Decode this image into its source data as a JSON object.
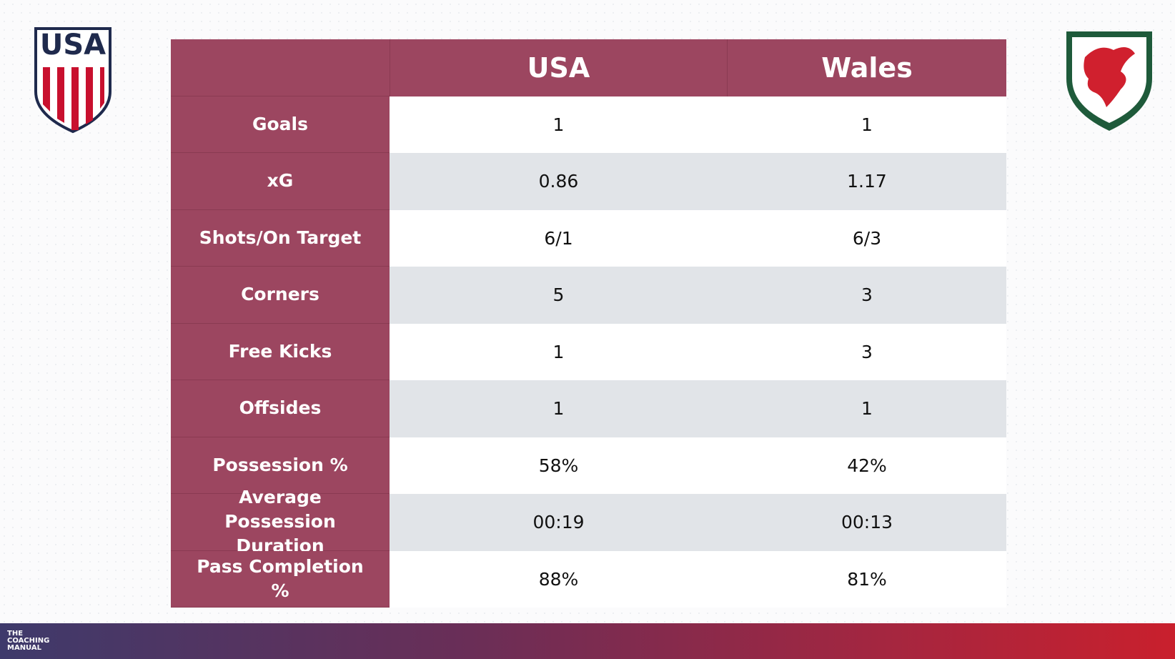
{
  "header": {
    "blank": "",
    "teams": [
      "USA",
      "Wales"
    ]
  },
  "table": {
    "rows": [
      [
        "Goals",
        "1",
        "1"
      ],
      [
        "xG",
        "0.86",
        "1.17"
      ],
      [
        "Shots/On Target",
        "6/1",
        "6/3"
      ],
      [
        "Corners",
        "5",
        "3"
      ],
      [
        "Free Kicks",
        "1",
        "3"
      ],
      [
        "Offsides",
        "1",
        "1"
      ],
      [
        "Possession %",
        "58%",
        "42%"
      ],
      [
        "Average Possession Duration",
        "00:19",
        "00:13"
      ],
      [
        "Pass Completion %",
        "88%",
        "81%"
      ]
    ]
  },
  "logos": {
    "left": "USA"
  },
  "footer": {
    "brand": [
      "THE",
      "COACHING",
      "MANUAL"
    ]
  }
}
